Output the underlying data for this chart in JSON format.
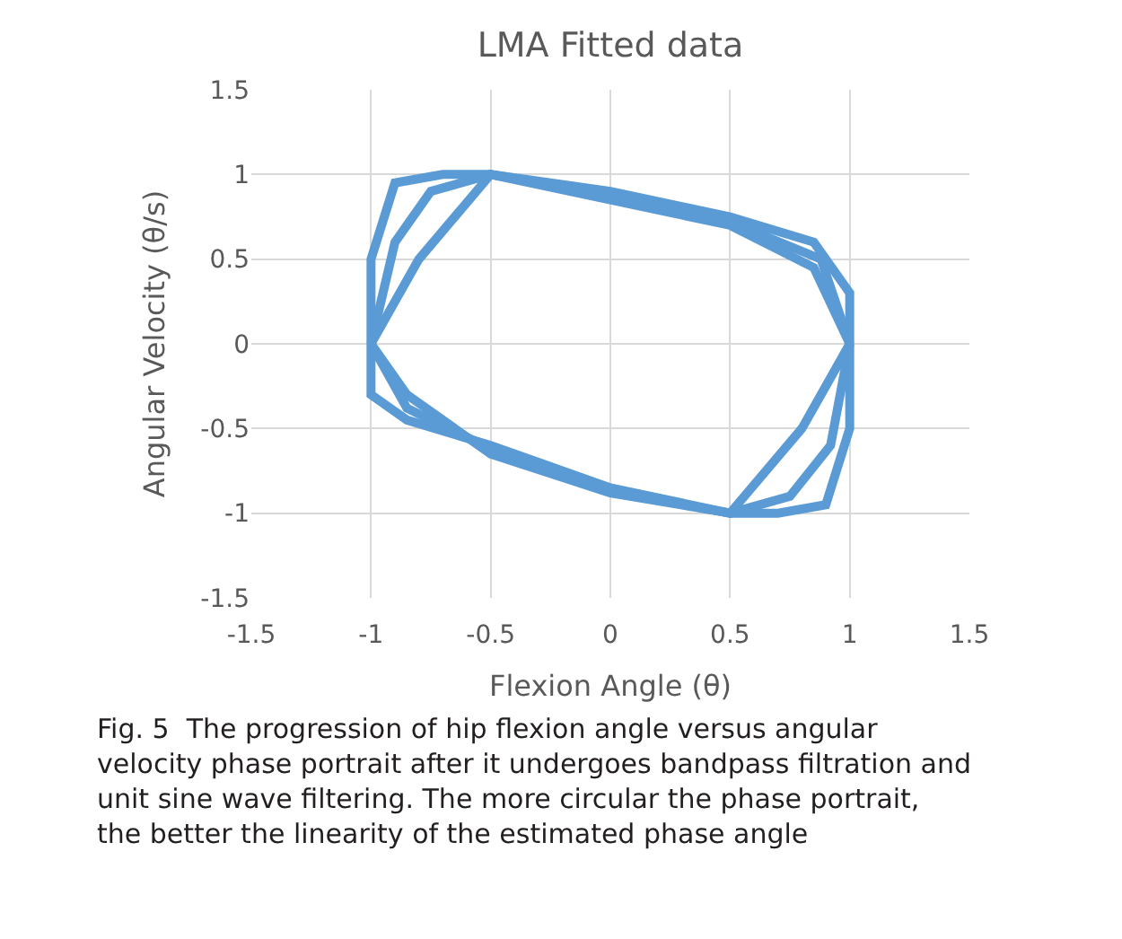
{
  "chart_data": {
    "type": "line",
    "title": "LMA Fitted data",
    "xlabel": "Flexion Angle (θ)",
    "ylabel": "Angular Velocity (θ/s)",
    "series": [
      {
        "color": "#5b9bd5",
        "x": [
          -1,
          -1,
          -0.9,
          -0.7,
          -0.5,
          0,
          0.5,
          0.85,
          1,
          1,
          null,
          -1,
          -1,
          -0.85,
          -0.5,
          0,
          0.5,
          0.7,
          0.9,
          1,
          1,
          null,
          -1,
          -0.9,
          -0.75,
          -0.5,
          0,
          0.5,
          0.88,
          1,
          null,
          -1,
          -0.85,
          -0.5,
          0,
          0.5,
          0.75,
          0.92,
          1,
          null,
          -1,
          -0.8,
          -0.5,
          0,
          0.5,
          0.85,
          1,
          null,
          -1,
          -0.85,
          -0.5,
          0,
          0.5,
          0.8,
          1
        ],
        "values": [
          0,
          0.5,
          0.95,
          1,
          1,
          0.9,
          0.75,
          0.6,
          0.3,
          0,
          null,
          0,
          -0.3,
          -0.45,
          -0.6,
          -0.85,
          -1,
          -1,
          -0.95,
          -0.5,
          0,
          null,
          0,
          0.6,
          0.9,
          1,
          0.88,
          0.72,
          0.5,
          0,
          null,
          0,
          -0.38,
          -0.62,
          -0.87,
          -1,
          -0.9,
          -0.6,
          0,
          null,
          0,
          0.5,
          1,
          0.85,
          0.7,
          0.45,
          0,
          null,
          0,
          -0.3,
          -0.65,
          -0.88,
          -1,
          -0.5,
          0
        ]
      }
    ],
    "xlim": [
      -1.5,
      1.5
    ],
    "xticks": [
      -1.5,
      -1,
      -0.5,
      0,
      0.5,
      1,
      1.5
    ],
    "ylim": [
      -1.5,
      1.5
    ],
    "yticks": [
      -1.5,
      -1,
      -0.5,
      0,
      0.5,
      1,
      1.5
    ],
    "grid": true,
    "legend": false,
    "marker": "none",
    "line_style": "solid",
    "annotations": [
      "Fig. 5  The progression of hip flexion angle versus angular velocity phase portrait after it undergoes bandpass filtration and unit sine wave filtering. The more circular the phase portrait, the better the linearity of the estimated phase angle"
    ]
  }
}
